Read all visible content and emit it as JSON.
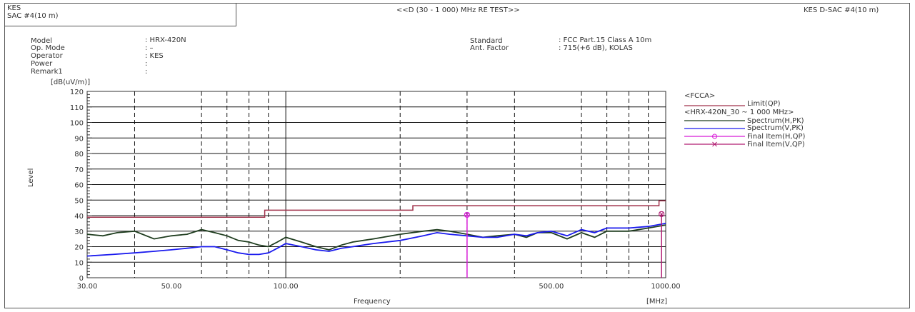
{
  "header": {
    "left_line1": "KES",
    "left_line2": "SAC #4(10 m)",
    "center_title": "<<D (30 - 1 000) MHz RE TEST>>",
    "right_title": "KES D-SAC #4(10 m)"
  },
  "info": {
    "left": [
      {
        "label": "Model",
        "value": ": HRX-420N"
      },
      {
        "label": "Op. Mode",
        "value": ": –"
      },
      {
        "label": "Operator",
        "value": ": KES"
      },
      {
        "label": "Power",
        "value": ":"
      },
      {
        "label": "Remark1",
        "value": ":"
      }
    ],
    "right": [
      {
        "label": "Standard",
        "value": ": FCC Part.15 Class A 10m"
      },
      {
        "label": "Ant. Factor",
        "value": ": 715(+6 dB), KOLAS"
      }
    ]
  },
  "legend": {
    "group1_title": "<FCCA>",
    "limit_label": "Limit(QP)",
    "group2_title": "<HRX-420N_30 ~ 1 000 MHz>",
    "spec_h_label": "Spectrum(H,PK)",
    "spec_v_label": "Spectrum(V,PK)",
    "final_h_label": "Final Item(H,QP)",
    "final_v_label": "Final Item(V,QP)"
  },
  "colors": {
    "limit": "#a0304a",
    "spectrum_h": "#1f3d1f",
    "spectrum_v": "#1a1aee",
    "final_h": "#d81ad8",
    "final_v": "#b01a70",
    "grid": "#111111"
  },
  "chart_data": {
    "type": "line",
    "title": "",
    "xlabel": "Frequency",
    "x_unit_label": "[MHz]",
    "ylabel": "Level",
    "y_unit_label": "[dB(uV/m)]",
    "x_scale": "log",
    "xlim": [
      30,
      1000
    ],
    "ylim": [
      0,
      120
    ],
    "y_ticks": [
      0,
      10,
      20,
      30,
      40,
      50,
      60,
      70,
      80,
      90,
      100,
      110,
      120
    ],
    "x_tick_labels": [
      {
        "value": 30,
        "label": "30.00"
      },
      {
        "value": 50,
        "label": "50.00"
      },
      {
        "value": 100,
        "label": "100.00"
      },
      {
        "value": 500,
        "label": "500.00"
      },
      {
        "value": 1000,
        "label": "1000.00"
      }
    ],
    "x_minor_grid": [
      40,
      60,
      70,
      80,
      90,
      200,
      300,
      400,
      600,
      700,
      800,
      900
    ],
    "grid": true,
    "legend_position": "right",
    "series": [
      {
        "name": "Limit(QP)",
        "x": [
          30,
          88,
          88,
          216,
          216,
          960,
          960,
          1000
        ],
        "y": [
          39,
          39,
          43.5,
          43.5,
          46.4,
          46.4,
          49.5,
          49.5
        ]
      },
      {
        "name": "Spectrum(H,PK)",
        "x": [
          30,
          33,
          36,
          40,
          45,
          50,
          55,
          60,
          65,
          70,
          75,
          80,
          85,
          90,
          95,
          100,
          110,
          120,
          130,
          140,
          150,
          170,
          200,
          230,
          250,
          270,
          300,
          330,
          360,
          400,
          430,
          460,
          500,
          550,
          600,
          650,
          700,
          800,
          900,
          1000
        ],
        "y": [
          28,
          27,
          29,
          30,
          25,
          27,
          28,
          31,
          29,
          27,
          24,
          23,
          21,
          20,
          23,
          26,
          23,
          20,
          18,
          21,
          23,
          25,
          28,
          30,
          31,
          30,
          28,
          26,
          27,
          28,
          26,
          29,
          29,
          25,
          29,
          26,
          30,
          30,
          32,
          34
        ]
      },
      {
        "name": "Spectrum(V,PK)",
        "x": [
          30,
          35,
          40,
          45,
          50,
          55,
          60,
          65,
          70,
          75,
          80,
          85,
          90,
          95,
          100,
          110,
          120,
          130,
          140,
          150,
          170,
          200,
          230,
          250,
          270,
          300,
          330,
          360,
          400,
          430,
          460,
          500,
          550,
          600,
          650,
          700,
          800,
          900,
          1000
        ],
        "y": [
          14,
          15,
          16,
          17,
          18,
          19,
          20,
          20,
          18,
          16,
          15,
          15,
          16,
          19,
          22,
          20,
          18,
          17,
          19,
          20,
          22,
          24,
          27,
          29,
          28,
          27,
          26,
          26,
          28,
          27,
          29,
          30,
          27,
          31,
          29,
          32,
          32,
          33,
          35
        ]
      },
      {
        "name": "Final Item(H,QP)",
        "x": [
          300
        ],
        "y": [
          40.5
        ]
      },
      {
        "name": "Final Item(V,QP)",
        "x": [
          975
        ],
        "y": [
          41
        ]
      }
    ]
  }
}
